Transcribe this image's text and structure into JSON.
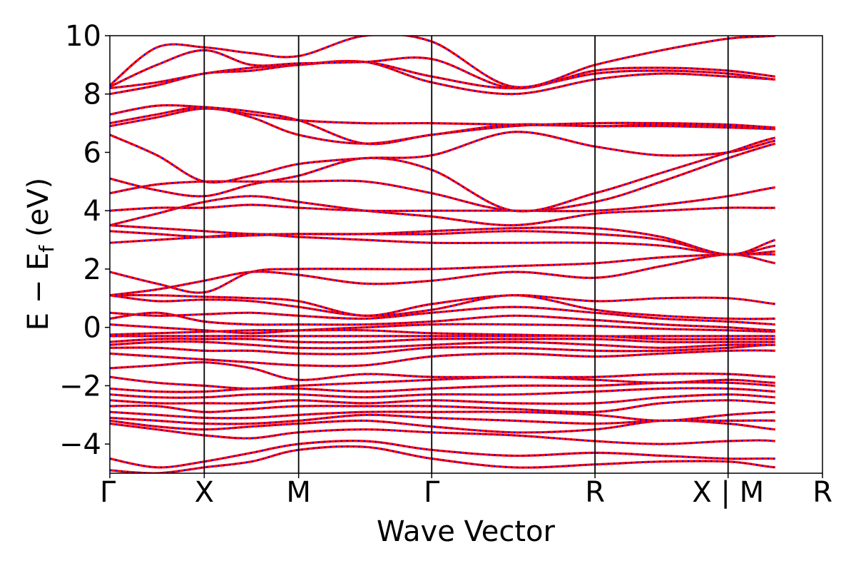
{
  "chart_data": {
    "type": "line",
    "xlabel": "Wave Vector",
    "ylabel_main": "E − E",
    "ylabel_sub": "f",
    "ylabel_unit": "(eV)",
    "ylim": [
      -5,
      10
    ],
    "yticks": [
      -4,
      -2,
      0,
      2,
      4,
      6,
      8,
      10
    ],
    "ytick_labels": [
      "−4",
      "−2",
      "0",
      "2",
      "4",
      "6",
      "8",
      "10"
    ],
    "kpath": [
      0,
      1,
      2,
      3.41,
      5.14,
      6.55,
      7.55
    ],
    "kpath_labels": [
      "Γ",
      "X",
      "M",
      "Γ",
      "R",
      "X | M",
      "R"
    ],
    "grid": false,
    "legend": "none",
    "series_styles": [
      {
        "color": "#ff0000",
        "style": "solid"
      },
      {
        "color": "#0000ff",
        "style": "dotted"
      }
    ],
    "bands": [
      [
        -4.9,
        -5.0,
        -4.8,
        -4.6,
        -4.2,
        -4.1,
        -4.5,
        -4.8,
        -4.7,
        -4.6,
        -4.6,
        -4.8,
        -4.9,
        -4.7,
        -4.6
      ],
      [
        -4.5,
        -4.8,
        -4.6,
        -4.3,
        -4.0,
        -3.9,
        -4.2,
        -4.4,
        -4.3,
        -4.4,
        -4.5,
        -4.5,
        -4.6,
        -4.4,
        -4.4
      ],
      [
        -3.3,
        -3.5,
        -3.7,
        -3.8,
        -3.6,
        -3.5,
        -3.6,
        -3.7,
        -3.9,
        -4.0,
        -3.9,
        -3.9,
        -4.2,
        -4.3,
        -4.6
      ],
      [
        -3.2,
        -3.4,
        -3.5,
        -3.4,
        -3.3,
        -3.2,
        -3.4,
        -3.6,
        -3.5,
        -3.2,
        -3.3,
        -3.5,
        -3.6,
        -3.9,
        -4.2
      ],
      [
        -3.1,
        -3.2,
        -3.3,
        -3.3,
        -3.2,
        -3.0,
        -3.1,
        -3.2,
        -3.3,
        -3.2,
        -3.2,
        -3.2,
        -3.3,
        -3.3,
        -3.2
      ],
      [
        -2.9,
        -3.0,
        -3.1,
        -3.1,
        -3.0,
        -2.9,
        -2.9,
        -2.9,
        -3.0,
        -3.2,
        -3.0,
        -2.9,
        -2.9,
        -3.0,
        -3.2
      ],
      [
        -2.7,
        -2.7,
        -2.9,
        -2.8,
        -2.7,
        -2.7,
        -2.7,
        -2.8,
        -2.9,
        -2.6,
        -2.5,
        -2.6,
        -2.7,
        -2.6,
        -2.6
      ],
      [
        -2.5,
        -2.6,
        -2.6,
        -2.6,
        -2.5,
        -2.6,
        -2.5,
        -2.6,
        -2.6,
        -2.4,
        -2.3,
        -2.4,
        -2.5,
        -2.4,
        -2.3
      ],
      [
        -2.3,
        -2.4,
        -2.4,
        -2.3,
        -2.3,
        -2.4,
        -2.3,
        -2.3,
        -2.2,
        -2.1,
        -2.1,
        -2.2,
        -2.3,
        -2.2,
        -2.0
      ],
      [
        -2.1,
        -2.2,
        -2.2,
        -2.1,
        -2.1,
        -2.2,
        -2.1,
        -2.0,
        -2.0,
        -1.9,
        -1.9,
        -2.0,
        -2.1,
        -2.0,
        -1.9
      ],
      [
        -1.7,
        -1.9,
        -2.0,
        -2.1,
        -2.0,
        -1.9,
        -1.8,
        -1.7,
        -1.8,
        -1.9,
        -1.8,
        -1.9,
        -1.9,
        -1.8,
        -1.7
      ],
      [
        -1.4,
        -1.3,
        -1.2,
        -1.4,
        -1.8,
        -1.6,
        -1.7,
        -1.7,
        -1.7,
        -1.6,
        -1.6,
        -1.7,
        -1.7,
        -1.6,
        -1.6
      ],
      [
        -0.9,
        -1.0,
        -1.1,
        -1.2,
        -1.3,
        -1.3,
        -1.0,
        -0.9,
        -1.0,
        -0.9,
        -0.8,
        -0.8,
        -0.9,
        -1.0,
        -1.1
      ],
      [
        -0.7,
        -0.7,
        -0.8,
        -0.8,
        -0.9,
        -0.9,
        -0.7,
        -0.7,
        -0.8,
        -0.8,
        -0.7,
        -0.6,
        -0.7,
        -0.8,
        -0.8
      ],
      [
        -0.6,
        -0.5,
        -0.5,
        -0.6,
        -0.7,
        -0.7,
        -0.6,
        -0.5,
        -0.6,
        -0.7,
        -0.6,
        -0.6,
        -0.6,
        -0.6,
        -0.6
      ],
      [
        -0.5,
        -0.4,
        -0.4,
        -0.4,
        -0.5,
        -0.5,
        -0.4,
        -0.4,
        -0.4,
        -0.5,
        -0.5,
        -0.5,
        -0.5,
        -0.5,
        -0.6
      ],
      [
        -0.3,
        -0.3,
        -0.3,
        -0.3,
        -0.3,
        -0.3,
        -0.3,
        -0.3,
        -0.3,
        -0.4,
        -0.4,
        -0.4,
        -0.4,
        -0.4,
        -0.5
      ],
      [
        -0.25,
        -0.2,
        -0.15,
        -0.1,
        -0.1,
        -0.1,
        -0.2,
        -0.25,
        -0.3,
        -0.3,
        -0.3,
        -0.3,
        -0.3,
        -0.3,
        -0.3
      ],
      [
        0.1,
        0.0,
        -0.1,
        -0.2,
        -0.1,
        0.0,
        0.1,
        0.1,
        0.05,
        -0.05,
        -0.1,
        -0.15,
        -0.2,
        -0.2,
        -0.25
      ],
      [
        0.3,
        0.5,
        0.2,
        0.1,
        0.1,
        0.1,
        0.2,
        0.4,
        0.25,
        0.1,
        0.0,
        -0.1,
        -0.1,
        -0.2,
        -0.2
      ],
      [
        0.5,
        0.4,
        0.45,
        0.5,
        0.4,
        0.3,
        0.5,
        0.7,
        0.5,
        0.3,
        0.2,
        0.1,
        0.0,
        -0.05,
        -0.1
      ],
      [
        1.1,
        0.9,
        0.95,
        0.9,
        0.7,
        0.4,
        0.6,
        1.1,
        0.6,
        0.4,
        0.3,
        0.3,
        0.4,
        0.3,
        0.2
      ],
      [
        1.1,
        1.1,
        1.05,
        1.0,
        0.9,
        0.4,
        0.8,
        1.1,
        0.9,
        1.0,
        1.0,
        0.8,
        0.6,
        0.7,
        0.9
      ],
      [
        1.1,
        1.3,
        1.6,
        1.9,
        1.8,
        1.5,
        1.6,
        1.9,
        1.7,
        2.1,
        2.5,
        2.2,
        1.9,
        1.9,
        1.9
      ],
      [
        1.9,
        1.5,
        1.2,
        1.9,
        2.0,
        2.0,
        2.0,
        2.1,
        2.2,
        2.4,
        2.5,
        2.5,
        2.4,
        2.2,
        2.0
      ],
      [
        2.9,
        3.0,
        3.1,
        3.2,
        3.1,
        3.0,
        2.9,
        2.9,
        2.9,
        2.8,
        2.5,
        2.6,
        2.7,
        2.9,
        3.1
      ],
      [
        3.3,
        3.2,
        3.1,
        3.15,
        3.2,
        3.2,
        3.2,
        3.3,
        3.2,
        3.0,
        2.5,
        2.8,
        3.0,
        3.3,
        3.6
      ],
      [
        3.5,
        3.4,
        3.3,
        3.2,
        3.2,
        3.2,
        3.3,
        3.4,
        3.4,
        3.1,
        2.5,
        3.0,
        3.5,
        3.9,
        4.2
      ],
      [
        3.5,
        3.9,
        4.3,
        4.5,
        4.3,
        4.0,
        3.8,
        3.5,
        3.9,
        4.0,
        4.1,
        4.1,
        4.2,
        4.2,
        4.2
      ],
      [
        4.0,
        4.1,
        4.1,
        4.2,
        4.1,
        4.0,
        4.0,
        4.0,
        4.0,
        4.2,
        4.5,
        4.8,
        5.0,
        4.8,
        4.5
      ],
      [
        4.6,
        4.9,
        5.0,
        5.0,
        5.0,
        5.0,
        4.6,
        4.0,
        4.3,
        5.0,
        5.8,
        6.3,
        6.7,
        5.9,
        5.0
      ],
      [
        5.1,
        4.7,
        4.5,
        4.9,
        5.2,
        5.8,
        5.4,
        4.0,
        4.6,
        5.3,
        6.0,
        6.5,
        6.7,
        6.2,
        5.7
      ],
      [
        6.6,
        5.9,
        5.0,
        5.2,
        5.6,
        5.8,
        5.9,
        6.7,
        6.2,
        5.9,
        6.0,
        6.4,
        6.75,
        6.3,
        5.6
      ],
      [
        6.9,
        7.2,
        7.5,
        7.3,
        7.1,
        7.0,
        7.0,
        6.95,
        6.9,
        6.9,
        6.85,
        6.8,
        6.75,
        6.3,
        6.0
      ],
      [
        7.0,
        7.3,
        7.55,
        7.2,
        6.6,
        6.3,
        6.6,
        6.95,
        6.9,
        6.95,
        6.9,
        6.8,
        6.75,
        7.1,
        7.5
      ],
      [
        7.3,
        7.6,
        7.55,
        7.4,
        7.1,
        6.3,
        6.6,
        6.9,
        7.0,
        7.0,
        6.95,
        6.85,
        6.75,
        7.1,
        7.5
      ],
      [
        8.0,
        8.3,
        8.7,
        8.8,
        9.0,
        9.1,
        8.4,
        8.0,
        8.5,
        8.7,
        8.6,
        8.5,
        8.4,
        8.6,
        8.7
      ],
      [
        8.2,
        8.4,
        8.7,
        8.9,
        9.0,
        9.1,
        8.6,
        8.2,
        8.7,
        8.8,
        8.7,
        8.5,
        8.4,
        8.8,
        9.1
      ],
      [
        8.25,
        9.0,
        9.5,
        9.0,
        9.05,
        9.1,
        9.2,
        8.2,
        8.8,
        8.9,
        8.8,
        8.6,
        8.4,
        9.0,
        9.5
      ],
      [
        8.3,
        9.6,
        9.6,
        9.4,
        9.3,
        10.0,
        9.8,
        8.25,
        9.0,
        9.5,
        9.9,
        10.0,
        10.2,
        10.0,
        9.6
      ]
    ]
  }
}
